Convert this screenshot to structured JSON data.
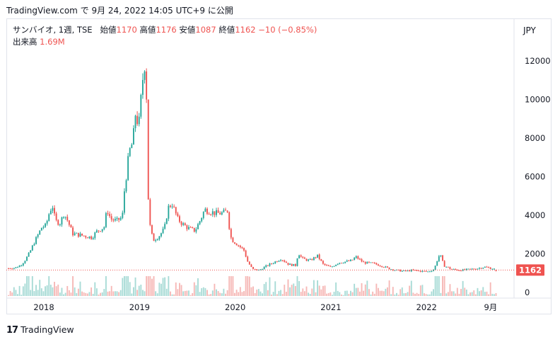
{
  "header": {
    "source_line": "TradingView.com で 9月 24, 2022 14:05 UTC+9 に公開"
  },
  "legend": {
    "symbol": "サンバイオ, 1週, TSE",
    "open_label": "始値",
    "open_value": "1170",
    "high_label": "高値",
    "high_value": "1176",
    "low_label": "安値",
    "low_value": "1087",
    "close_label": "終値",
    "close_value": "1162",
    "change": "−10 (−0.85%)",
    "volume_label": "出来高",
    "volume_value": "1.69M"
  },
  "currency": "JPY",
  "brand": {
    "mark": "17",
    "name": "TradingView"
  },
  "colors": {
    "up": "#26a69a",
    "down": "#ef5350",
    "last_price_line": "#ef5350",
    "volume_up": "#a8dbd6",
    "volume_down": "#f6b8b6"
  },
  "chart_data": {
    "type": "candlestick",
    "title": "",
    "xlabel": "",
    "ylabel": "",
    "y_ticks": [
      0,
      2000,
      4000,
      6000,
      8000,
      10000,
      12000
    ],
    "ylim": [
      0,
      12500
    ],
    "x_ticks": [
      {
        "label": "2018",
        "t": 2018.0
      },
      {
        "label": "2019",
        "t": 2019.0
      },
      {
        "label": "2020",
        "t": 2020.0
      },
      {
        "label": "2021",
        "t": 2021.0
      },
      {
        "label": "2022",
        "t": 2022.0
      },
      {
        "label": "9月",
        "t": 2022.67
      }
    ],
    "xlim": [
      2017.63,
      2022.9
    ],
    "last_price": 1162,
    "last_price_label": "1162",
    "anchors": [
      [
        2017.63,
        1250
      ],
      [
        2017.7,
        1280
      ],
      [
        2017.76,
        1420
      ],
      [
        2017.8,
        1650
      ],
      [
        2017.85,
        2050
      ],
      [
        2017.9,
        2600
      ],
      [
        2017.95,
        3100
      ],
      [
        2017.98,
        3400
      ],
      [
        2018.02,
        3450
      ],
      [
        2018.06,
        4200
      ],
      [
        2018.09,
        4500
      ],
      [
        2018.12,
        3700
      ],
      [
        2018.17,
        3600
      ],
      [
        2018.21,
        4100
      ],
      [
        2018.25,
        3700
      ],
      [
        2018.3,
        3050
      ],
      [
        2018.4,
        2950
      ],
      [
        2018.5,
        2850
      ],
      [
        2018.55,
        3150
      ],
      [
        2018.6,
        3300
      ],
      [
        2018.63,
        3400
      ],
      [
        2018.66,
        4300
      ],
      [
        2018.7,
        3800
      ],
      [
        2018.76,
        3700
      ],
      [
        2018.82,
        3900
      ],
      [
        2018.84,
        5200
      ],
      [
        2018.88,
        6800
      ],
      [
        2018.9,
        7400
      ],
      [
        2018.93,
        7800
      ],
      [
        2018.96,
        9400
      ],
      [
        2018.99,
        8500
      ],
      [
        2019.02,
        10300
      ],
      [
        2019.05,
        12000
      ],
      [
        2019.07,
        11000
      ],
      [
        2019.085,
        5800
      ],
      [
        2019.1,
        3700
      ],
      [
        2019.14,
        2700
      ],
      [
        2019.2,
        2900
      ],
      [
        2019.26,
        3300
      ],
      [
        2019.3,
        4400
      ],
      [
        2019.34,
        4600
      ],
      [
        2019.4,
        3800
      ],
      [
        2019.46,
        3500
      ],
      [
        2019.52,
        3300
      ],
      [
        2019.58,
        3200
      ],
      [
        2019.64,
        3800
      ],
      [
        2019.68,
        4300
      ],
      [
        2019.73,
        4200
      ],
      [
        2019.8,
        4100
      ],
      [
        2019.85,
        4100
      ],
      [
        2019.89,
        4150
      ],
      [
        2019.92,
        4250
      ],
      [
        2019.94,
        3300
      ],
      [
        2019.96,
        2750
      ],
      [
        2020.02,
        2500
      ],
      [
        2020.09,
        2200
      ],
      [
        2020.13,
        1600
      ],
      [
        2020.18,
        1200
      ],
      [
        2020.25,
        1150
      ],
      [
        2020.32,
        1350
      ],
      [
        2020.4,
        1550
      ],
      [
        2020.48,
        1750
      ],
      [
        2020.56,
        1450
      ],
      [
        2020.63,
        1400
      ],
      [
        2020.66,
        2050
      ],
      [
        2020.7,
        1750
      ],
      [
        2020.78,
        1650
      ],
      [
        2020.86,
        1900
      ],
      [
        2020.92,
        1450
      ],
      [
        2021.0,
        1300
      ],
      [
        2021.08,
        1550
      ],
      [
        2021.16,
        1600
      ],
      [
        2021.22,
        1650
      ],
      [
        2021.26,
        1850
      ],
      [
        2021.34,
        1550
      ],
      [
        2021.44,
        1500
      ],
      [
        2021.52,
        1400
      ],
      [
        2021.6,
        1250
      ],
      [
        2021.68,
        1150
      ],
      [
        2021.76,
        1100
      ],
      [
        2021.86,
        1150
      ],
      [
        2021.94,
        1100
      ],
      [
        2022.02,
        1080
      ],
      [
        2022.08,
        1200
      ],
      [
        2022.11,
        1650
      ],
      [
        2022.14,
        2000
      ],
      [
        2022.18,
        1400
      ],
      [
        2022.26,
        1200
      ],
      [
        2022.36,
        1150
      ],
      [
        2022.46,
        1200
      ],
      [
        2022.54,
        1250
      ],
      [
        2022.6,
        1320
      ],
      [
        2022.68,
        1250
      ],
      [
        2022.74,
        1162
      ]
    ]
  }
}
